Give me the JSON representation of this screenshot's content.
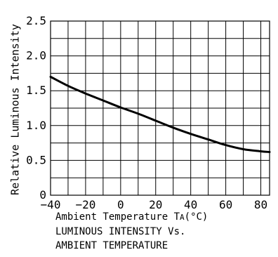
{
  "chart_data": {
    "type": "line",
    "xlabel": "Ambient Temperature T",
    "xlabel_sub": "A",
    "xlabel_unit": "(°C)",
    "ylabel": "Relative Luminous Intensity",
    "caption": [
      "LUMINOUS INTENSITY Vs.",
      "AMBIENT TEMPERATURE"
    ],
    "xlim": [
      -40,
      85
    ],
    "ylim": [
      0,
      2.5
    ],
    "x_tick_labels": [
      "−40",
      "−20",
      "0",
      "20",
      "40",
      "60",
      "80"
    ],
    "x_tick_values": [
      -40,
      -20,
      0,
      20,
      40,
      60,
      80
    ],
    "y_tick_labels": [
      "0",
      "0.5",
      "1.0",
      "1.5",
      "2.0",
      "2.5"
    ],
    "y_tick_values": [
      0,
      0.5,
      1.0,
      1.5,
      2.0,
      2.5
    ],
    "grid": true,
    "series": [
      {
        "x": [
          -40,
          -30,
          -20,
          -10,
          0,
          10,
          20,
          30,
          40,
          50,
          60,
          70,
          80,
          85
        ],
        "y": [
          1.7,
          1.57,
          1.46,
          1.36,
          1.26,
          1.17,
          1.07,
          0.97,
          0.88,
          0.8,
          0.72,
          0.66,
          0.63,
          0.62
        ]
      }
    ]
  }
}
